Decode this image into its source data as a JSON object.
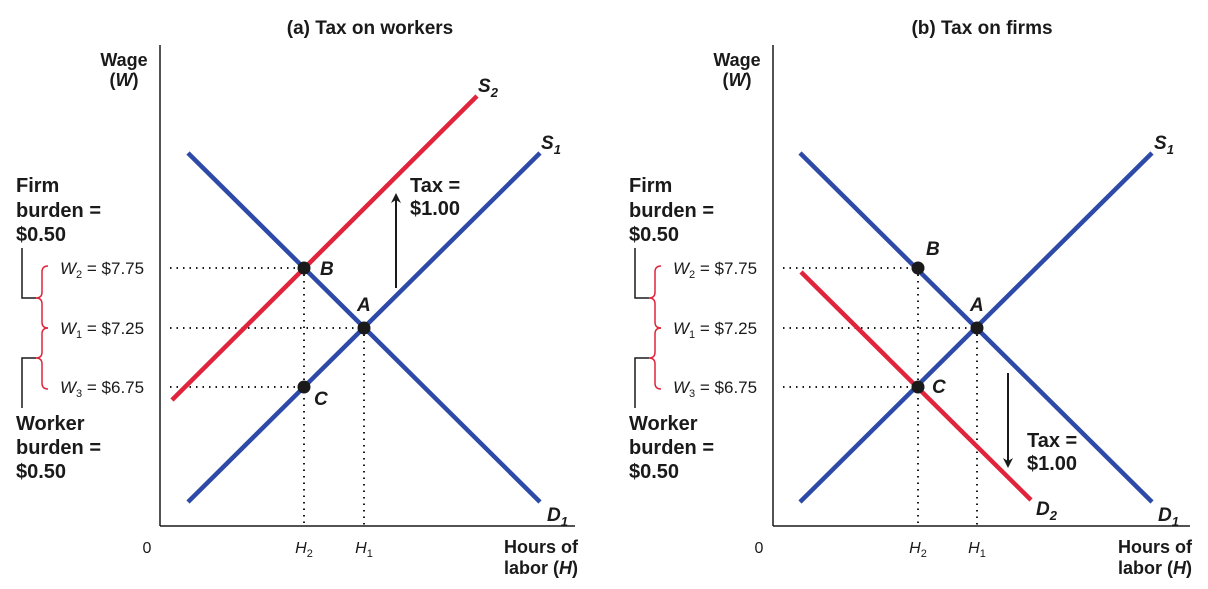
{
  "panels": [
    {
      "id": "a",
      "title": "(a) Tax on workers",
      "y_axis_label_line1": "Wage",
      "y_axis_label_line2": "W",
      "origin": "0",
      "x_axis_label_line1": "Hours of",
      "x_axis_label_line2": "labor",
      "x_axis_var": "H",
      "firm_burden": [
        "Firm",
        "burden =",
        "$0.50"
      ],
      "worker_burden": [
        "Worker",
        "burden =",
        "$0.50"
      ],
      "wage_labels": [
        {
          "var": "W",
          "sub": "2",
          "text": " = $7.75"
        },
        {
          "var": "W",
          "sub": "1",
          "text": " = $7.25"
        },
        {
          "var": "W",
          "sub": "3",
          "text": " = $6.75"
        }
      ],
      "x_ticks": [
        {
          "var": "H",
          "sub": "2"
        },
        {
          "var": "H",
          "sub": "1"
        }
      ],
      "points": [
        "A",
        "B",
        "C"
      ],
      "curves": {
        "S1": {
          "var": "S",
          "sub": "1",
          "color": "#2e4aa8"
        },
        "S2": {
          "var": "S",
          "sub": "2",
          "color": "#e0243c"
        },
        "D1": {
          "var": "D",
          "sub": "1",
          "color": "#2e4aa8"
        }
      },
      "tax_label": [
        "Tax =",
        "$1.00"
      ],
      "tax_arrow_direction": "up"
    },
    {
      "id": "b",
      "title": "(b) Tax on firms",
      "y_axis_label_line1": "Wage",
      "y_axis_label_line2": "W",
      "origin": "0",
      "x_axis_label_line1": "Hours of",
      "x_axis_label_line2": "labor",
      "x_axis_var": "H",
      "firm_burden": [
        "Firm",
        "burden =",
        "$0.50"
      ],
      "worker_burden": [
        "Worker",
        "burden =",
        "$0.50"
      ],
      "wage_labels": [
        {
          "var": "W",
          "sub": "2",
          "text": " = $7.75"
        },
        {
          "var": "W",
          "sub": "1",
          "text": " = $7.25"
        },
        {
          "var": "W",
          "sub": "3",
          "text": " = $6.75"
        }
      ],
      "x_ticks": [
        {
          "var": "H",
          "sub": "2"
        },
        {
          "var": "H",
          "sub": "1"
        }
      ],
      "points": [
        "A",
        "B",
        "C"
      ],
      "curves": {
        "S1": {
          "var": "S",
          "sub": "1",
          "color": "#2e4aa8"
        },
        "D1": {
          "var": "D",
          "sub": "1",
          "color": "#2e4aa8"
        },
        "D2": {
          "var": "D",
          "sub": "2",
          "color": "#e0243c"
        }
      },
      "tax_label": [
        "Tax =",
        "$1.00"
      ],
      "tax_arrow_direction": "down"
    }
  ]
}
